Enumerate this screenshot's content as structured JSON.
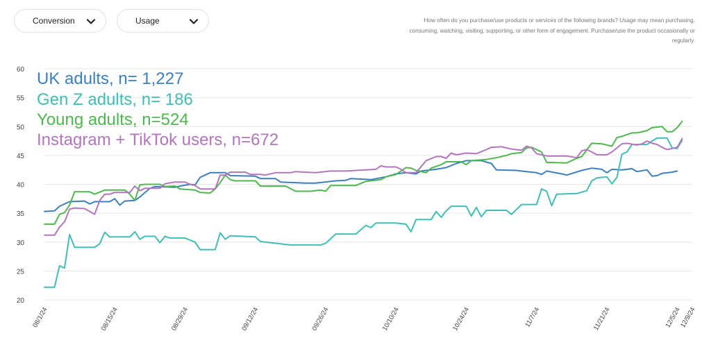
{
  "controls": {
    "conversion_label": "Conversion",
    "usage_label": "Usage"
  },
  "note": "How often do you purchase/use products or services of the following brands? Usage may mean purchasing, consuming, watching, visiting, supporting, or other form of engagement. Purchase/use the product occasionally or regularly.",
  "chart_data": {
    "type": "line",
    "x_ticks": [
      "08/1/24",
      "08/15/24",
      "08/29/24",
      "09/12/24",
      "09/26/24",
      "10/10/24",
      "10/24/24",
      "11/7/24",
      "11/21/24",
      "12/5/24",
      "12/9/24"
    ],
    "ylim": [
      20,
      60
    ],
    "yticks": [
      20,
      25,
      30,
      35,
      40,
      45,
      50,
      55,
      60
    ],
    "grid": "horizontal",
    "legend_position": "top-left",
    "series": [
      {
        "name": "UK adults, n= 1,227",
        "color": "#3a7fc1",
        "points": [
          [
            0,
            35.3
          ],
          [
            2,
            35.4
          ],
          [
            3,
            36.2
          ],
          [
            5,
            37.0
          ],
          [
            8,
            37.1
          ],
          [
            9,
            36.6
          ],
          [
            10,
            37.0
          ],
          [
            13,
            37.0
          ],
          [
            14,
            37.5
          ],
          [
            15,
            36.4
          ],
          [
            16,
            37.1
          ],
          [
            18,
            37.2
          ],
          [
            19,
            37.8
          ],
          [
            21,
            39.3
          ],
          [
            22,
            39.6
          ],
          [
            26,
            39.5
          ],
          [
            27,
            39.7
          ],
          [
            29,
            40.0
          ],
          [
            30,
            39.9
          ],
          [
            31,
            41.2
          ],
          [
            33,
            42.0
          ],
          [
            36,
            42.0
          ],
          [
            37,
            41.5
          ],
          [
            42,
            41.4
          ],
          [
            43,
            41.0
          ],
          [
            46,
            41.0
          ],
          [
            47,
            40.4
          ],
          [
            52,
            40.2
          ],
          [
            54,
            40.2
          ],
          [
            58,
            40.6
          ],
          [
            60,
            40.7
          ],
          [
            61,
            41.0
          ],
          [
            65,
            40.8
          ],
          [
            68,
            41.3
          ],
          [
            70,
            41.8
          ],
          [
            72,
            42.0
          ],
          [
            74,
            41.8
          ],
          [
            75,
            42.3
          ],
          [
            78,
            42.6
          ],
          [
            80,
            42.9
          ],
          [
            82,
            43.6
          ],
          [
            84,
            44.1
          ],
          [
            87,
            44.1
          ],
          [
            89,
            43.6
          ],
          [
            90,
            42.5
          ],
          [
            94,
            42.4
          ],
          [
            96,
            42.2
          ],
          [
            98,
            42.0
          ],
          [
            99,
            41.7
          ],
          [
            100,
            42.3
          ],
          [
            103,
            41.8
          ],
          [
            104,
            41.6
          ],
          [
            107,
            42.4
          ],
          [
            109,
            42.8
          ],
          [
            111,
            42.6
          ],
          [
            112,
            42.0
          ],
          [
            113,
            42.6
          ],
          [
            115,
            42.5
          ],
          [
            117,
            42.7
          ],
          [
            118,
            42.2
          ],
          [
            120,
            42.5
          ],
          [
            121,
            41.4
          ],
          [
            122,
            41.5
          ],
          [
            123,
            41.9
          ],
          [
            125,
            42.1
          ],
          [
            126,
            42.3
          ]
        ]
      },
      {
        "name": "Gen Z adults, n= 186",
        "color": "#3dbfb8",
        "points": [
          [
            0,
            22.2
          ],
          [
            2,
            22.2
          ],
          [
            3,
            25.9
          ],
          [
            4,
            25.5
          ],
          [
            5,
            31.3
          ],
          [
            6,
            29.1
          ],
          [
            10,
            29.1
          ],
          [
            11,
            29.7
          ],
          [
            12,
            31.7
          ],
          [
            13,
            30.9
          ],
          [
            17,
            30.9
          ],
          [
            18,
            31.8
          ],
          [
            19,
            30.5
          ],
          [
            20,
            31.0
          ],
          [
            22,
            31.0
          ],
          [
            23,
            29.9
          ],
          [
            24,
            31.0
          ],
          [
            25,
            30.7
          ],
          [
            28,
            30.7
          ],
          [
            30,
            30.0
          ],
          [
            31,
            28.7
          ],
          [
            34,
            28.7
          ],
          [
            35,
            31.6
          ],
          [
            36,
            30.5
          ],
          [
            37,
            31.1
          ],
          [
            42,
            30.9
          ],
          [
            43,
            30.1
          ],
          [
            49,
            29.5
          ],
          [
            55,
            29.5
          ],
          [
            56,
            29.8
          ],
          [
            58,
            31.4
          ],
          [
            62,
            31.4
          ],
          [
            64,
            32.9
          ],
          [
            65,
            32.5
          ],
          [
            66,
            33.3
          ],
          [
            70,
            33.3
          ],
          [
            72,
            33.1
          ],
          [
            73,
            31.8
          ],
          [
            74,
            33.9
          ],
          [
            77,
            33.9
          ],
          [
            78,
            35.3
          ],
          [
            79,
            34.3
          ],
          [
            80,
            35.4
          ],
          [
            81,
            36.2
          ],
          [
            84,
            36.2
          ],
          [
            85,
            34.5
          ],
          [
            86,
            36.0
          ],
          [
            87,
            34.4
          ],
          [
            88,
            35.5
          ],
          [
            92,
            35.5
          ],
          [
            93,
            34.8
          ],
          [
            95,
            36.5
          ],
          [
            98,
            36.5
          ],
          [
            99,
            39.2
          ],
          [
            100,
            38.8
          ],
          [
            101,
            36.3
          ],
          [
            102,
            38.3
          ],
          [
            106,
            38.4
          ],
          [
            108,
            38.9
          ],
          [
            109,
            40.6
          ],
          [
            110,
            41.1
          ],
          [
            112,
            41.3
          ],
          [
            113,
            40.1
          ],
          [
            114,
            41.2
          ],
          [
            115,
            45.2
          ],
          [
            116,
            45.6
          ],
          [
            117,
            46.9
          ],
          [
            120,
            46.9
          ],
          [
            121,
            47.5
          ],
          [
            122,
            48.0
          ],
          [
            124,
            48.0
          ],
          [
            125,
            46.3
          ],
          [
            126,
            46.2
          ],
          [
            127,
            47.6
          ]
        ]
      },
      {
        "name": "Young adults, n=524",
        "color": "#4aba4a",
        "points": [
          [
            0,
            33.1
          ],
          [
            2,
            33.1
          ],
          [
            3,
            34.8
          ],
          [
            4,
            35.1
          ],
          [
            5,
            36.4
          ],
          [
            6,
            38.7
          ],
          [
            9,
            38.7
          ],
          [
            10,
            38.3
          ],
          [
            12,
            39.0
          ],
          [
            16,
            39.0
          ],
          [
            17,
            38.3
          ],
          [
            18,
            37.2
          ],
          [
            19,
            39.9
          ],
          [
            20,
            40.0
          ],
          [
            23,
            40.0
          ],
          [
            24,
            39.6
          ],
          [
            26,
            39.7
          ],
          [
            27,
            39.2
          ],
          [
            30,
            39.0
          ],
          [
            31,
            38.6
          ],
          [
            33,
            38.5
          ],
          [
            34,
            39.2
          ],
          [
            35,
            40.3
          ],
          [
            36,
            41.6
          ],
          [
            37,
            40.8
          ],
          [
            38,
            40.6
          ],
          [
            42,
            40.6
          ],
          [
            43,
            39.7
          ],
          [
            48,
            39.7
          ],
          [
            50,
            38.8
          ],
          [
            53,
            38.8
          ],
          [
            55,
            39.0
          ],
          [
            56,
            38.8
          ],
          [
            57,
            39.8
          ],
          [
            62,
            39.8
          ],
          [
            64,
            40.5
          ],
          [
            67,
            40.8
          ],
          [
            68,
            41.3
          ],
          [
            70,
            41.7
          ],
          [
            72,
            42.9
          ],
          [
            73,
            42.8
          ],
          [
            74,
            42.4
          ],
          [
            76,
            42.0
          ],
          [
            77,
            42.8
          ],
          [
            79,
            43.4
          ],
          [
            80,
            43.9
          ],
          [
            83,
            43.9
          ],
          [
            84,
            43.4
          ],
          [
            85,
            44.1
          ],
          [
            88,
            44.3
          ],
          [
            90,
            44.6
          ],
          [
            92,
            45.0
          ],
          [
            93,
            45.3
          ],
          [
            95,
            45.5
          ],
          [
            96,
            46.3
          ],
          [
            97,
            46.4
          ],
          [
            99,
            45.6
          ],
          [
            100,
            43.8
          ],
          [
            104,
            43.7
          ],
          [
            106,
            44.5
          ],
          [
            107,
            44.8
          ],
          [
            109,
            47.1
          ],
          [
            111,
            47.0
          ],
          [
            113,
            46.6
          ],
          [
            114,
            48.1
          ],
          [
            115,
            48.3
          ],
          [
            117,
            48.9
          ],
          [
            118,
            48.9
          ],
          [
            120,
            49.3
          ],
          [
            121,
            49.8
          ],
          [
            123,
            50.0
          ],
          [
            124,
            49.1
          ],
          [
            125,
            49.1
          ],
          [
            126,
            49.8
          ],
          [
            127,
            50.9
          ]
        ]
      },
      {
        "name": "Instagram + TikTok users, n=672",
        "color": "#b574bf",
        "points": [
          [
            0,
            31.2
          ],
          [
            2,
            31.2
          ],
          [
            3,
            32.6
          ],
          [
            4,
            33.5
          ],
          [
            5,
            35.7
          ],
          [
            6,
            35.9
          ],
          [
            8,
            35.8
          ],
          [
            9,
            35.3
          ],
          [
            10,
            34.8
          ],
          [
            11,
            37.2
          ],
          [
            12,
            38.3
          ],
          [
            13,
            38.3
          ],
          [
            14,
            38.6
          ],
          [
            17,
            38.6
          ],
          [
            18,
            39.7
          ],
          [
            19,
            38.9
          ],
          [
            20,
            39.3
          ],
          [
            23,
            39.3
          ],
          [
            24,
            40.1
          ],
          [
            26,
            40.4
          ],
          [
            28,
            40.4
          ],
          [
            29,
            40.0
          ],
          [
            30,
            39.8
          ],
          [
            31,
            39.2
          ],
          [
            33,
            39.2
          ],
          [
            34,
            39.2
          ],
          [
            35,
            41.6
          ],
          [
            36,
            41.6
          ],
          [
            37,
            42.1
          ],
          [
            40,
            42.1
          ],
          [
            41,
            41.7
          ],
          [
            43,
            41.7
          ],
          [
            44,
            41.6
          ],
          [
            46,
            42.0
          ],
          [
            49,
            42.0
          ],
          [
            50,
            42.2
          ],
          [
            52,
            42.1
          ],
          [
            54,
            42.0
          ],
          [
            57,
            42.3
          ],
          [
            60,
            42.3
          ],
          [
            62,
            42.4
          ],
          [
            64,
            42.5
          ],
          [
            66,
            42.6
          ],
          [
            67,
            43.2
          ],
          [
            68,
            43.0
          ],
          [
            70,
            43.0
          ],
          [
            71,
            42.6
          ],
          [
            72,
            42.0
          ],
          [
            74,
            42.0
          ],
          [
            76,
            44.1
          ],
          [
            78,
            44.8
          ],
          [
            79,
            44.8
          ],
          [
            80,
            44.5
          ],
          [
            81,
            45.4
          ],
          [
            82,
            45.1
          ],
          [
            84,
            45.4
          ],
          [
            86,
            45.3
          ],
          [
            88,
            46.0
          ],
          [
            89,
            46.4
          ],
          [
            91,
            46.5
          ],
          [
            93,
            46.1
          ],
          [
            95,
            45.9
          ],
          [
            96,
            46.6
          ],
          [
            97,
            46.3
          ],
          [
            98,
            45.3
          ],
          [
            100,
            44.9
          ],
          [
            104,
            44.9
          ],
          [
            106,
            44.6
          ],
          [
            107,
            45.8
          ],
          [
            108,
            46.0
          ],
          [
            109,
            45.6
          ],
          [
            110,
            45.1
          ],
          [
            112,
            45.1
          ],
          [
            113,
            45.6
          ],
          [
            115,
            47.0
          ],
          [
            116,
            47.1
          ],
          [
            118,
            46.8
          ],
          [
            119,
            47.0
          ],
          [
            120,
            47.5
          ],
          [
            121,
            47.1
          ],
          [
            122,
            46.9
          ],
          [
            123,
            46.4
          ],
          [
            124,
            46.0
          ],
          [
            126,
            46.4
          ],
          [
            127,
            47.9
          ]
        ]
      }
    ]
  }
}
